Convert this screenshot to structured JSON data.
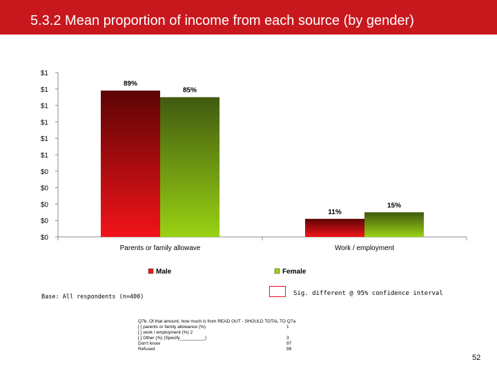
{
  "slide": {
    "title": "5.3.2 Mean proportion of income from each source (by gender)",
    "page_number": "52",
    "base_note": "Base: All respondents (n=400)",
    "sig_note": "Sig. different @ 95% confidence interval",
    "question": {
      "rows": [
        {
          "text": "Q7b. Of that amount, how much is from READ OUT - SHOULD TOTAL TO Q7a",
          "code": ""
        },
        {
          "text": "[            ] parents or family allowance (%)",
          "code": "1"
        },
        {
          "text": "[            ] work / employment (%)    2",
          "code": ""
        },
        {
          "text": "[            ] Other (%) (Specify__________)",
          "code": "3"
        },
        {
          "text": "Don't know",
          "code": "97"
        },
        {
          "text": "Refused",
          "code": "99"
        }
      ]
    }
  },
  "colors": {
    "title_bar": "#c8181e",
    "male_top": "#5c0404",
    "male_bottom": "#f2141a",
    "female_top": "#405a10",
    "female_bottom": "#9ad214",
    "sig_border": "#e8141c"
  },
  "chart_data": {
    "type": "bar",
    "categories": [
      "Parents or family allowave",
      "Work / employment"
    ],
    "series": [
      {
        "name": "Male",
        "values": [
          0.89,
          0.11
        ],
        "labels": [
          "89%",
          "11%"
        ]
      },
      {
        "name": "Female",
        "values": [
          0.85,
          0.15
        ],
        "labels": [
          "85%",
          "15%"
        ]
      }
    ],
    "yticks": [
      "$1",
      "$1",
      "$1",
      "$1",
      "$1",
      "$1",
      "$0",
      "$0",
      "$0",
      "$0",
      "$0"
    ],
    "ylim": [
      0,
      1.0
    ],
    "legend_position": "bottom",
    "grid": false
  }
}
